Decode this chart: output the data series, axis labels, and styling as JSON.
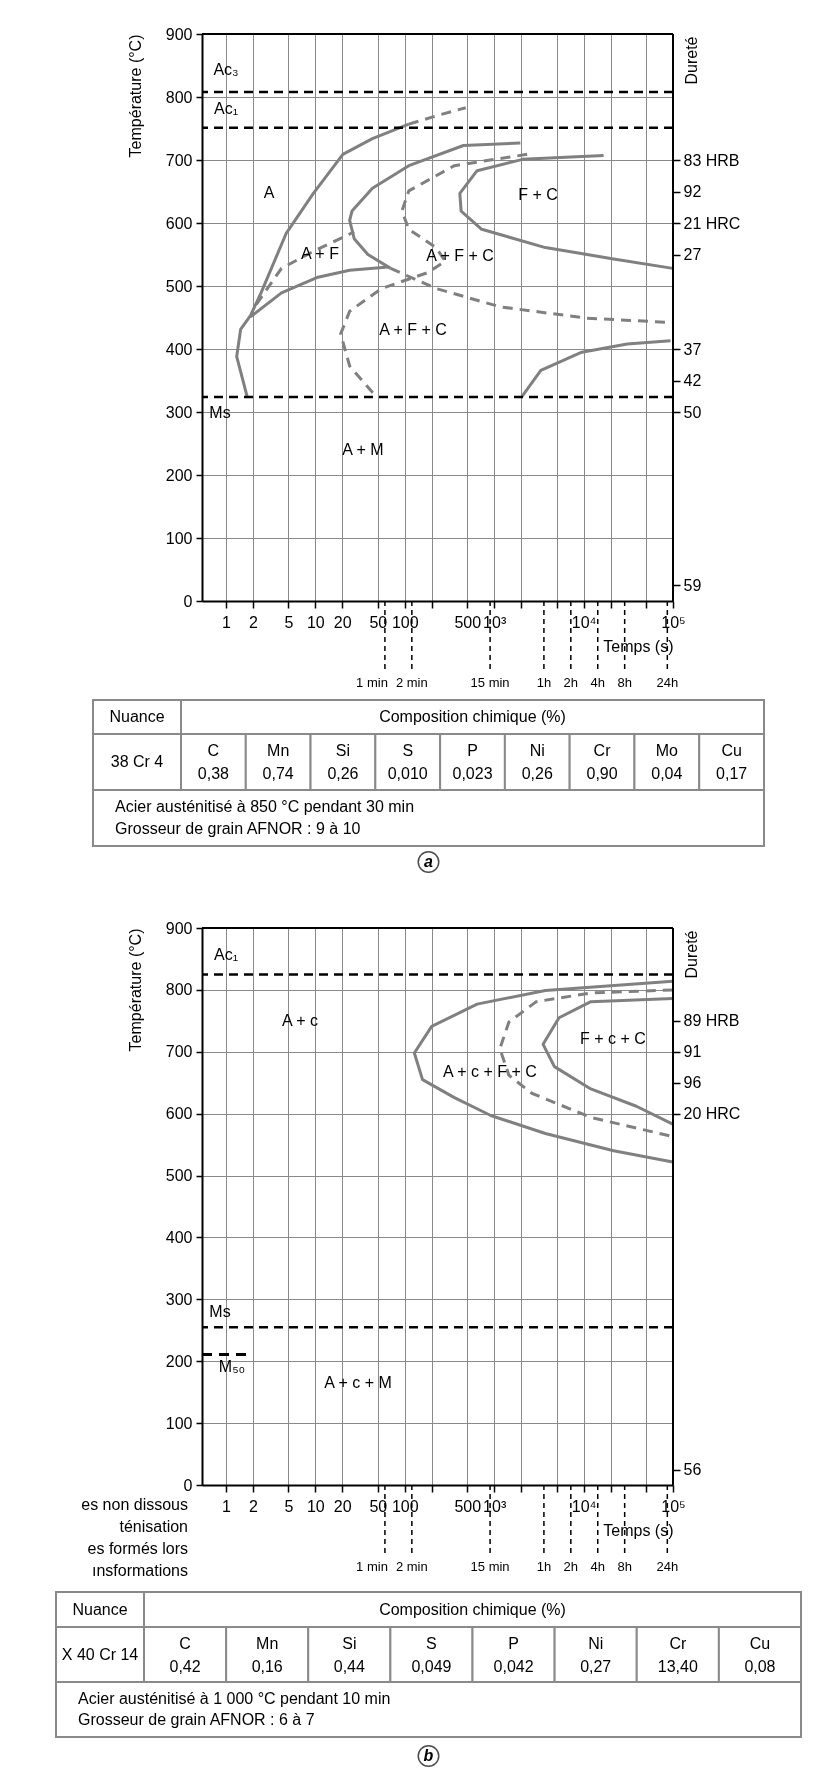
{
  "chart_data": [
    {
      "type": "line",
      "xlabel": "Temps (s)",
      "ylabel": "Température (°C)",
      "y2label": "Dureté",
      "log": "x",
      "grid": true,
      "xlim": [
        0.54,
        100000
      ],
      "xticks": [
        1,
        2,
        5,
        10,
        20,
        50,
        100,
        {
          "value": 200,
          "label": null
        },
        500,
        {
          "value": 1000,
          "label": "10³"
        },
        {
          "value": 2000,
          "label": null
        },
        {
          "value": 5000,
          "label": null
        },
        {
          "value": 10000,
          "label": "10⁴"
        },
        {
          "value": 20000,
          "label": null
        },
        {
          "value": 50000,
          "label": null
        },
        {
          "value": 100000,
          "label": "10⁵"
        }
      ],
      "ylim": [
        0,
        900
      ],
      "yticks": [
        0,
        100,
        200,
        300,
        400,
        500,
        600,
        700,
        800,
        900
      ],
      "y2_categories": [
        null,
        null,
        null,
        null,
        null,
        null,
        null,
        null,
        "83 HRB",
        null,
        "92",
        null,
        "21 HRC",
        null,
        "27",
        null,
        null,
        null,
        null,
        null,
        "37",
        null,
        "42",
        null,
        "50",
        null,
        null,
        null,
        null,
        null,
        null,
        null,
        null,
        null,
        null,
        "59",
        null
      ],
      "series": [
        {
          "color": "#808080",
          "line_style": "solid",
          "x": [
            1.73,
            1.32,
            1.46,
            1.88,
            2.47,
            4.7,
            9.5,
            20.3,
            43.5,
            111
          ],
          "values": [
            324,
            388,
            431,
            453,
            489,
            583,
            647,
            709,
            734,
            757
          ]
        },
        {
          "color": "#808080",
          "line_style": "dashed",
          "x": [
            111,
            224,
            481
          ],
          "values": [
            757,
            770,
            783
          ]
        },
        {
          "color": "#808080",
          "line_style": "solid",
          "x": [
            1.88,
            4.18,
            10.7,
            24.2,
            65.6
          ],
          "values": [
            451,
            489,
            514,
            525,
            530
          ]
        },
        {
          "color": "#808080",
          "line_style": "solid",
          "x": [
            1963,
            453,
            111,
            43.5,
            25.7,
            24.2,
            27.2,
            38.7,
            69.5
          ],
          "values": [
            727,
            723,
            691,
            655,
            619,
            604,
            575,
            550,
            528
          ]
        },
        {
          "color": "#808080",
          "line_style": "dashed",
          "x": [
            2.19,
            4.18,
            9.5,
            27.2
          ],
          "values": [
            471,
            528,
            555,
            586
          ]
        },
        {
          "color": "#808080",
          "line_style": "dashed",
          "x": [
            2339,
            359,
            111,
            93,
            111,
            224,
            284,
            178,
            55,
            24.2,
            19.2,
            24.2,
            46.1
          ],
          "values": [
            709,
            691,
            651,
            619,
            590,
            561,
            539,
            521,
            496,
            460,
            424,
            373,
            327
          ]
        },
        {
          "color": "#808080",
          "line_style": "dashed",
          "x": [
            69.5,
            224,
            1158,
            10740,
            99400
          ],
          "values": [
            528,
            496,
            467,
            449,
            442
          ]
        },
        {
          "color": "#808080",
          "line_style": "solid",
          "x": [
            16750,
            2080,
            644,
            413,
            427,
            725,
            3740,
            21680,
            99400
          ],
          "values": [
            707,
            701,
            683,
            647,
            619,
            590,
            561,
            543,
            528
          ]
        },
        {
          "color": "#808080",
          "line_style": "solid",
          "x": [
            2032,
            3325,
            9550,
            30800,
            93800
          ],
          "values": [
            324,
            366,
            395,
            408,
            413
          ]
        }
      ],
      "ref_lines": [
        {
          "axis": "y",
          "value": 808,
          "color": "#000000",
          "line_style": "dashed"
        },
        {
          "axis": "y",
          "value": 751,
          "color": "#000000",
          "line_style": "dashed"
        },
        {
          "axis": "y",
          "value": 324,
          "color": "#000000",
          "line_style": "dashed"
        },
        {
          "axis": "x",
          "value": 60,
          "label": "1 min",
          "color": "#000000",
          "line_style": "dashed"
        },
        {
          "axis": "x",
          "value": 120,
          "label": "2 min",
          "color": "#000000",
          "line_style": "dashed"
        },
        {
          "axis": "x",
          "value": 900,
          "label": "15 min",
          "color": "#000000",
          "line_style": "dashed"
        },
        {
          "axis": "x",
          "value": 3600,
          "label": "1h",
          "color": "#000000",
          "line_style": "dashed"
        },
        {
          "axis": "x",
          "value": 7200,
          "label": "2h",
          "color": "#000000",
          "line_style": "dashed"
        },
        {
          "axis": "x",
          "value": 14400,
          "label": "4h",
          "color": "#000000",
          "line_style": "dashed"
        },
        {
          "axis": "x",
          "value": 28800,
          "label": "8h",
          "color": "#000000",
          "line_style": "dashed"
        },
        {
          "axis": "x",
          "value": 86400,
          "label": "24h",
          "color": "#000000",
          "line_style": "dashed"
        }
      ],
      "annotations": [
        "Ac₃",
        "Ac₁",
        "Ms",
        "A",
        "A + F",
        "A + F + C",
        "F + C",
        "A + F + C",
        "A + M"
      ]
    },
    {
      "type": "other",
      "title": "Composition chimique (%)",
      "categories": [
        "C",
        "Mn",
        "Si",
        "S",
        "P",
        "Ni",
        "Cr",
        "Mo",
        "Cu"
      ],
      "value_labels": [
        "0,38",
        "0,74",
        "0,26",
        "0,010",
        "0,023",
        "0,26",
        "0,90",
        "0,04",
        "0,17"
      ],
      "annotations": [
        "Nuance",
        "38 Cr 4",
        "Acier austénitisé à 850 °C pendant 30 min",
        "Grosseur de grain AFNOR : 9 à 10",
        "a"
      ]
    },
    {
      "type": "line",
      "xlabel": "Temps (s)",
      "ylabel": "Température (°C)",
      "y2label": "Dureté",
      "log": "x",
      "grid": true,
      "xlim": [
        0.54,
        100000
      ],
      "xticks": [
        1,
        2,
        5,
        10,
        20,
        50,
        100,
        {
          "value": 200,
          "label": null
        },
        500,
        {
          "value": 1000,
          "label": "10³"
        },
        {
          "value": 2000,
          "label": null
        },
        {
          "value": 5000,
          "label": null
        },
        {
          "value": 10000,
          "label": "10⁴"
        },
        {
          "value": 20000,
          "label": null
        },
        {
          "value": 50000,
          "label": null
        },
        {
          "value": 100000,
          "label": "10⁵"
        }
      ],
      "ylim": [
        0,
        900
      ],
      "yticks": [
        0,
        100,
        200,
        300,
        400,
        500,
        600,
        700,
        800,
        900
      ],
      "y2_categories": [
        null,
        null,
        null,
        null,
        null,
        null,
        "89 HRB",
        null,
        "91",
        null,
        "96",
        null,
        "20 HRC",
        null,
        null,
        null,
        null,
        null,
        null,
        null,
        null,
        null,
        null,
        null,
        null,
        null,
        null,
        null,
        null,
        null,
        null,
        null,
        null,
        null,
        null,
        "56",
        null
      ],
      "series": [
        {
          "color": "#808080",
          "line_style": "solid",
          "x": [
            99400,
            3740,
            644,
            200,
            128,
            158,
            359,
            916,
            3740,
            21680,
            99400
          ],
          "values": [
            814,
            799,
            777,
            741,
            698,
            655,
            626,
            597,
            568,
            540,
            522
          ]
        },
        {
          "color": "#808080",
          "line_style": "dashed",
          "x": [
            99400,
            12050,
            2958,
            1462,
            1158,
            1462,
            2630,
            12050,
            99400
          ],
          "values": [
            800,
            795,
            781,
            748,
            705,
            662,
            633,
            594,
            563
          ]
        },
        {
          "color": "#808080",
          "line_style": "solid",
          "x": [
            99400,
            12050,
            5310,
            3525,
            4720,
            12050,
            38900,
            99400
          ],
          "values": [
            786,
            781,
            755,
            712,
            676,
            640,
            612,
            583
          ]
        },
        {
          "color": "#000000",
          "line_style": "dashed",
          "x": [
            0.54,
            2
          ],
          "values": [
            211,
            211
          ]
        }
      ],
      "ref_lines": [
        {
          "axis": "y",
          "value": 825,
          "color": "#000000",
          "line_style": "dashed"
        },
        {
          "axis": "y",
          "value": 255,
          "color": "#000000",
          "line_style": "dashed"
        },
        {
          "axis": "x",
          "value": 60,
          "label": "1 min",
          "color": "#000000",
          "line_style": "dashed"
        },
        {
          "axis": "x",
          "value": 120,
          "label": "2 min",
          "color": "#000000",
          "line_style": "dashed"
        },
        {
          "axis": "x",
          "value": 900,
          "label": "15 min",
          "color": "#000000",
          "line_style": "dashed"
        },
        {
          "axis": "x",
          "value": 3600,
          "label": "1h",
          "color": "#000000",
          "line_style": "dashed"
        },
        {
          "axis": "x",
          "value": 7200,
          "label": "2h",
          "color": "#000000",
          "line_style": "dashed"
        },
        {
          "axis": "x",
          "value": 14400,
          "label": "4h",
          "color": "#000000",
          "line_style": "dashed"
        },
        {
          "axis": "x",
          "value": 28800,
          "label": "8h",
          "color": "#000000",
          "line_style": "dashed"
        },
        {
          "axis": "x",
          "value": 86400,
          "label": "24h",
          "color": "#000000",
          "line_style": "dashed"
        }
      ],
      "annotations": [
        "Ac₁",
        "Ms",
        "M₅₀",
        "A + c",
        "A + c + F + C",
        "F + c + C",
        "A + c + M",
        "es non dissous",
        "ténisation",
        "es formés lors",
        "ınsformations"
      ]
    },
    {
      "type": "other",
      "title": "Composition chimique (%)",
      "categories": [
        "C",
        "Mn",
        "Si",
        "S",
        "P",
        "Ni",
        "Cr",
        "Cu"
      ],
      "value_labels": [
        "0,42",
        "0,16",
        "0,44",
        "0,049",
        "0,042",
        "0,27",
        "13,40",
        "0,08"
      ],
      "annotations": [
        "Nuance",
        "X 40 Cr 14",
        "Acier austénitisé à 1 000 °C pendant 10 min",
        "Grosseur de grain AFNOR : 6 à 7",
        "b"
      ]
    }
  ]
}
